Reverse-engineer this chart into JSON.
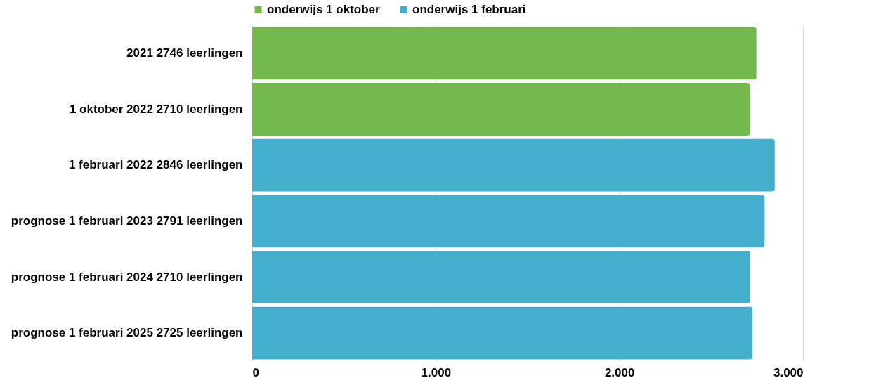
{
  "chart_data": {
    "type": "bar",
    "orientation": "horizontal",
    "categories": [
      "2021   2746 leerlingen",
      "1 oktober 2022   2710 leerlingen",
      "1 februari 2022   2846 leerlingen",
      "prognose 1 februari 2023   2791 leerlingen",
      "prognose 1 februari 2024   2710 leerlingen",
      "prognose 1 februari 2025   2725 leerlingen"
    ],
    "series": [
      {
        "name": "onderwijs 1 oktober",
        "color": "#75b84e",
        "values": [
          2746,
          2710,
          null,
          null,
          null,
          null
        ]
      },
      {
        "name": "onderwijs 1 februari",
        "color": "#44afcd",
        "values": [
          null,
          null,
          2846,
          2791,
          2710,
          2725
        ]
      }
    ],
    "xlim": [
      0,
      3000
    ],
    "xticks": [
      0,
      {
        "value": 1000,
        "label": "1.000"
      },
      {
        "value": 2000,
        "label": "2.000"
      },
      {
        "value": 3000,
        "label": "3.000"
      }
    ],
    "grid": "x",
    "legend": "top"
  }
}
